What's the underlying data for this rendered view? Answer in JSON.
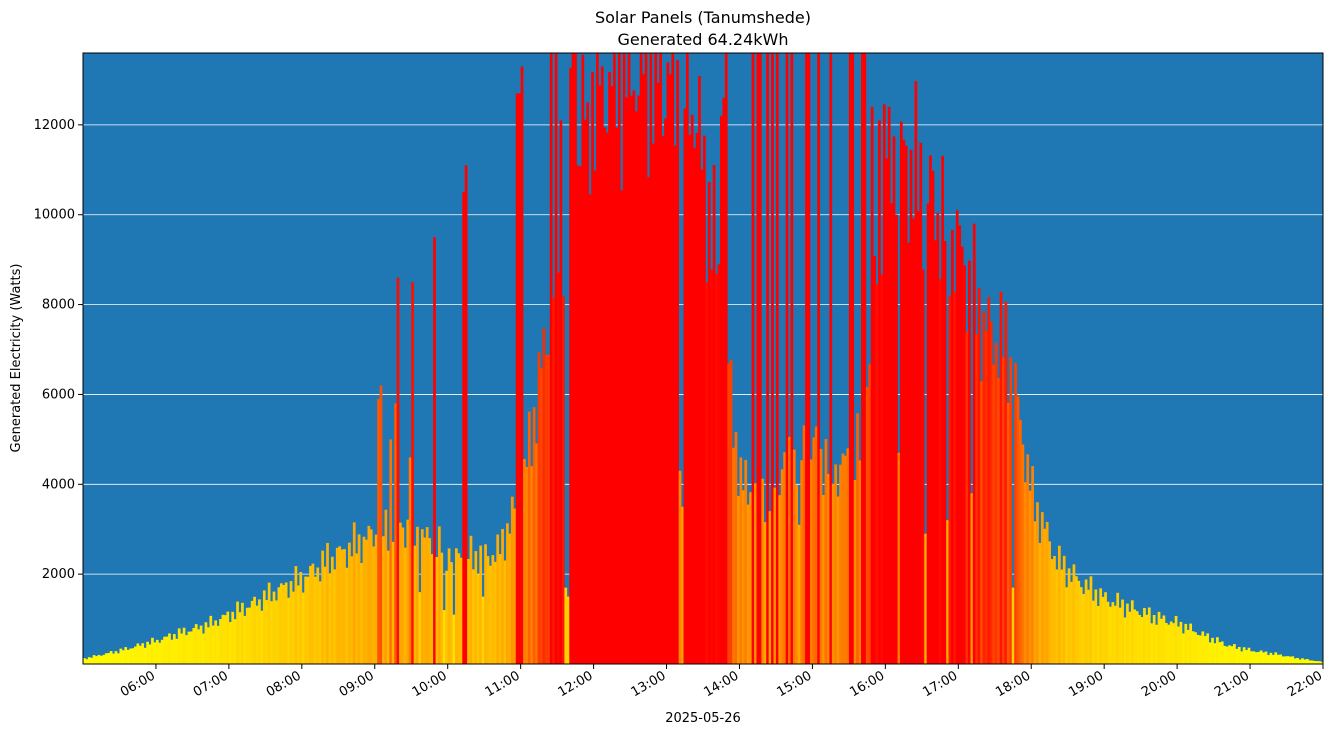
{
  "chart_data": {
    "type": "bar",
    "title": "Solar Panels (Tanumshede)",
    "subtitle": "Generated 64.24kWh",
    "xlabel": "2025-05-26",
    "ylabel": "Generated Electricity (Watts)",
    "ylim": [
      0,
      13600
    ],
    "xlim": [
      "05:00",
      "22:00"
    ],
    "x_ticks": [
      "06:00",
      "07:00",
      "08:00",
      "09:00",
      "10:00",
      "11:00",
      "12:00",
      "13:00",
      "14:00",
      "15:00",
      "16:00",
      "17:00",
      "18:00",
      "19:00",
      "20:00",
      "21:00",
      "22:00"
    ],
    "y_ticks": [
      2000,
      4000,
      6000,
      8000,
      10000,
      12000
    ],
    "grid": "horizontal",
    "colors": {
      "plot_background": "#1f77b4",
      "grid": "#ffffff",
      "low": "#ffff00",
      "high": "#ff0000"
    },
    "bar_color_scale": "yellow-to-red by value",
    "bar_interval_minutes": 2,
    "profile": [
      [
        "05:00",
        120
      ],
      [
        "05:30",
        300
      ],
      [
        "06:00",
        520
      ],
      [
        "06:20",
        700
      ],
      [
        "06:40",
        850
      ],
      [
        "07:00",
        1100
      ],
      [
        "07:20",
        1350
      ],
      [
        "07:40",
        1650
      ],
      [
        "08:00",
        1900
      ],
      [
        "08:20",
        2300
      ],
      [
        "08:40",
        2600
      ],
      [
        "09:00",
        2900
      ],
      [
        "09:20",
        3100
      ],
      [
        "09:40",
        2800
      ],
      [
        "10:00",
        2500
      ],
      [
        "10:20",
        2400
      ],
      [
        "10:40",
        2450
      ],
      [
        "11:00",
        3800
      ],
      [
        "11:20",
        7200
      ],
      [
        "11:40",
        11500
      ],
      [
        "12:00",
        12800
      ],
      [
        "12:20",
        13100
      ],
      [
        "12:40",
        13300
      ],
      [
        "13:00",
        13000
      ],
      [
        "13:20",
        12700
      ],
      [
        "13:40",
        9000
      ],
      [
        "14:00",
        4000
      ],
      [
        "14:20",
        3900
      ],
      [
        "14:40",
        4600
      ],
      [
        "15:00",
        4800
      ],
      [
        "15:20",
        4300
      ],
      [
        "15:40",
        4800
      ],
      [
        "16:00",
        11800
      ],
      [
        "16:20",
        11000
      ],
      [
        "16:40",
        10200
      ],
      [
        "17:00",
        9200
      ],
      [
        "17:20",
        7500
      ],
      [
        "17:40",
        7000
      ],
      [
        "18:00",
        3700
      ],
      [
        "18:20",
        2300
      ],
      [
        "18:40",
        1800
      ],
      [
        "19:00",
        1450
      ],
      [
        "19:20",
        1250
      ],
      [
        "19:40",
        1050
      ],
      [
        "20:00",
        900
      ],
      [
        "20:20",
        650
      ],
      [
        "20:40",
        420
      ],
      [
        "21:00",
        300
      ],
      [
        "21:20",
        220
      ],
      [
        "21:40",
        120
      ],
      [
        "22:00",
        40
      ]
    ],
    "spikes": [
      [
        "09:02",
        5900
      ],
      [
        "09:04",
        6200
      ],
      [
        "09:12",
        5000
      ],
      [
        "09:16",
        5800
      ],
      [
        "09:18",
        8600
      ],
      [
        "09:28",
        4600
      ],
      [
        "09:30",
        8500
      ],
      [
        "09:48",
        9500
      ],
      [
        "10:12",
        10500
      ],
      [
        "10:14",
        11100
      ],
      [
        "10:56",
        12700
      ],
      [
        "10:58",
        12700
      ],
      [
        "11:00",
        13300
      ],
      [
        "11:24",
        13600
      ],
      [
        "11:28",
        13600
      ],
      [
        "11:32",
        12100
      ],
      [
        "11:42",
        13600
      ],
      [
        "11:44",
        13600
      ],
      [
        "11:54",
        12500
      ],
      [
        "12:06",
        13300
      ],
      [
        "13:44",
        12200
      ],
      [
        "13:46",
        12600
      ],
      [
        "13:48",
        13600
      ],
      [
        "14:10",
        13600
      ],
      [
        "14:14",
        13600
      ],
      [
        "14:16",
        13600
      ],
      [
        "14:22",
        13600
      ],
      [
        "14:26",
        13600
      ],
      [
        "14:30",
        13600
      ],
      [
        "14:38",
        13600
      ],
      [
        "14:42",
        13600
      ],
      [
        "14:54",
        13600
      ],
      [
        "14:56",
        13600
      ],
      [
        "15:04",
        13600
      ],
      [
        "15:14",
        13600
      ],
      [
        "15:30",
        13600
      ],
      [
        "15:32",
        13600
      ],
      [
        "15:40",
        13600
      ],
      [
        "15:42",
        13600
      ],
      [
        "15:48",
        12400
      ],
      [
        "15:54",
        12100
      ],
      [
        "16:02",
        12400
      ]
    ],
    "dips": [
      [
        "09:36",
        1600
      ],
      [
        "09:56",
        1200
      ],
      [
        "10:04",
        1100
      ],
      [
        "10:28",
        1500
      ],
      [
        "11:36",
        1700
      ],
      [
        "11:38",
        1500
      ],
      [
        "13:10",
        4300
      ],
      [
        "13:12",
        3500
      ],
      [
        "14:24",
        3400
      ],
      [
        "14:48",
        3100
      ],
      [
        "16:10",
        4700
      ],
      [
        "16:32",
        2900
      ],
      [
        "16:50",
        3200
      ],
      [
        "17:10",
        3800
      ],
      [
        "17:44",
        1700
      ]
    ]
  }
}
